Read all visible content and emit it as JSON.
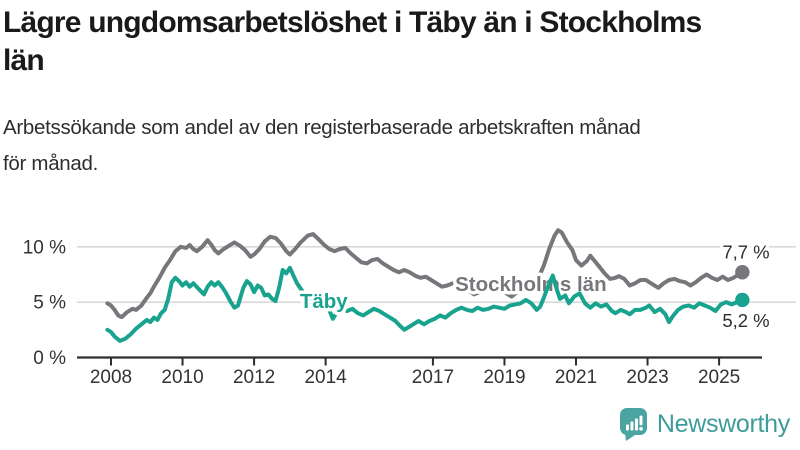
{
  "chart_data": {
    "type": "line",
    "title": "Lägre ungdomsarbetslöshet i Täby än i Stockholms län",
    "title_lines": [
      "Lägre ungdomsarbetslöshet i Täby än i Stockholms",
      "län"
    ],
    "subtitle": "Arbetssökande som andel av den registerbaserade arbetskraften månad för månad.",
    "subtitle_lines": [
      "Arbetssökande som andel av den registerbaserade arbetskraften månad",
      "för månad."
    ],
    "unit": "%",
    "grid": "horizontal",
    "legend_position": "inline-labels",
    "xlim": [
      2007.9,
      2025.65
    ],
    "ylim": [
      0,
      12
    ],
    "yticks": [
      {
        "value": 0,
        "label": "0 %"
      },
      {
        "value": 5,
        "label": "5 %"
      },
      {
        "value": 10,
        "label": "10 %"
      }
    ],
    "xticks": [
      {
        "value": 2008,
        "label": "2008"
      },
      {
        "value": 2010,
        "label": "2010"
      },
      {
        "value": 2012,
        "label": "2012"
      },
      {
        "value": 2014,
        "label": "2014"
      },
      {
        "value": 2017,
        "label": "2017"
      },
      {
        "value": 2019,
        "label": "2019"
      },
      {
        "value": 2021,
        "label": "2021"
      },
      {
        "value": 2023,
        "label": "2023"
      },
      {
        "value": 2025,
        "label": "2025"
      }
    ],
    "colors": {
      "taby": "#18A38E",
      "stockholms_lan": "#77777B",
      "grid": "#D9D9D9",
      "axis": "#2E2E2E",
      "text": "#333333"
    },
    "series": [
      {
        "name": "Stockholms län",
        "color": "#77777B",
        "end_label": "7,7 %",
        "end_value": 7.7,
        "label_at": [
          2017.62,
          6.0
        ],
        "points": [
          [
            2007.9,
            4.9
          ],
          [
            2008.0,
            4.7
          ],
          [
            2008.1,
            4.3
          ],
          [
            2008.2,
            3.8
          ],
          [
            2008.3,
            3.65
          ],
          [
            2008.45,
            4.1
          ],
          [
            2008.6,
            4.4
          ],
          [
            2008.7,
            4.3
          ],
          [
            2008.85,
            4.7
          ],
          [
            2009.0,
            5.4
          ],
          [
            2009.1,
            5.8
          ],
          [
            2009.2,
            6.4
          ],
          [
            2009.35,
            7.2
          ],
          [
            2009.5,
            8.1
          ],
          [
            2009.65,
            8.8
          ],
          [
            2009.8,
            9.6
          ],
          [
            2009.95,
            10.0
          ],
          [
            2010.1,
            9.9
          ],
          [
            2010.2,
            10.15
          ],
          [
            2010.3,
            9.8
          ],
          [
            2010.4,
            9.6
          ],
          [
            2010.55,
            10.0
          ],
          [
            2010.7,
            10.6
          ],
          [
            2010.8,
            10.2
          ],
          [
            2010.9,
            9.7
          ],
          [
            2011.0,
            9.4
          ],
          [
            2011.15,
            9.8
          ],
          [
            2011.3,
            10.1
          ],
          [
            2011.45,
            10.4
          ],
          [
            2011.6,
            10.1
          ],
          [
            2011.75,
            9.7
          ],
          [
            2011.9,
            9.1
          ],
          [
            2012.0,
            9.3
          ],
          [
            2012.15,
            9.8
          ],
          [
            2012.3,
            10.5
          ],
          [
            2012.45,
            10.9
          ],
          [
            2012.6,
            10.8
          ],
          [
            2012.75,
            10.3
          ],
          [
            2012.9,
            9.6
          ],
          [
            2013.0,
            9.3
          ],
          [
            2013.15,
            9.8
          ],
          [
            2013.3,
            10.4
          ],
          [
            2013.5,
            11.0
          ],
          [
            2013.65,
            11.15
          ],
          [
            2013.8,
            10.7
          ],
          [
            2013.95,
            10.2
          ],
          [
            2014.1,
            9.8
          ],
          [
            2014.25,
            9.6
          ],
          [
            2014.4,
            9.8
          ],
          [
            2014.55,
            9.9
          ],
          [
            2014.7,
            9.4
          ],
          [
            2014.85,
            9.0
          ],
          [
            2015.0,
            8.6
          ],
          [
            2015.15,
            8.5
          ],
          [
            2015.3,
            8.8
          ],
          [
            2015.45,
            8.9
          ],
          [
            2015.6,
            8.5
          ],
          [
            2015.75,
            8.2
          ],
          [
            2015.9,
            7.9
          ],
          [
            2016.05,
            7.7
          ],
          [
            2016.2,
            7.9
          ],
          [
            2016.35,
            7.7
          ],
          [
            2016.5,
            7.4
          ],
          [
            2016.65,
            7.2
          ],
          [
            2016.8,
            7.3
          ],
          [
            2016.95,
            7.0
          ],
          [
            2017.1,
            6.7
          ],
          [
            2017.25,
            6.4
          ],
          [
            2017.4,
            6.5
          ],
          [
            2017.55,
            6.7
          ],
          [
            2017.7,
            6.6
          ],
          [
            2017.85,
            6.3
          ],
          [
            2018.0,
            6.0
          ],
          [
            2018.15,
            5.7
          ],
          [
            2018.3,
            5.9
          ],
          [
            2018.45,
            6.2
          ],
          [
            2018.6,
            6.4
          ],
          [
            2018.75,
            6.5
          ],
          [
            2018.9,
            6.2
          ],
          [
            2019.05,
            5.8
          ],
          [
            2019.2,
            5.5
          ],
          [
            2019.35,
            5.9
          ],
          [
            2019.5,
            6.3
          ],
          [
            2019.65,
            6.6
          ],
          [
            2019.8,
            6.8
          ],
          [
            2019.95,
            7.2
          ],
          [
            2020.1,
            8.3
          ],
          [
            2020.25,
            9.8
          ],
          [
            2020.4,
            11.0
          ],
          [
            2020.5,
            11.5
          ],
          [
            2020.6,
            11.3
          ],
          [
            2020.75,
            10.4
          ],
          [
            2020.9,
            9.7
          ],
          [
            2021.0,
            8.8
          ],
          [
            2021.15,
            8.3
          ],
          [
            2021.3,
            8.7
          ],
          [
            2021.4,
            9.2
          ],
          [
            2021.5,
            8.8
          ],
          [
            2021.65,
            8.2
          ],
          [
            2021.8,
            7.6
          ],
          [
            2021.95,
            7.1
          ],
          [
            2022.1,
            7.2
          ],
          [
            2022.2,
            7.35
          ],
          [
            2022.35,
            7.1
          ],
          [
            2022.5,
            6.5
          ],
          [
            2022.65,
            6.7
          ],
          [
            2022.8,
            7.0
          ],
          [
            2022.95,
            7.0
          ],
          [
            2023.1,
            6.7
          ],
          [
            2023.3,
            6.3
          ],
          [
            2023.45,
            6.7
          ],
          [
            2023.6,
            7.0
          ],
          [
            2023.75,
            7.1
          ],
          [
            2023.9,
            6.9
          ],
          [
            2024.05,
            6.8
          ],
          [
            2024.2,
            6.5
          ],
          [
            2024.35,
            6.8
          ],
          [
            2024.5,
            7.2
          ],
          [
            2024.65,
            7.5
          ],
          [
            2024.8,
            7.2
          ],
          [
            2024.95,
            7.0
          ],
          [
            2025.1,
            7.3
          ],
          [
            2025.25,
            7.0
          ],
          [
            2025.4,
            7.2
          ],
          [
            2025.55,
            7.5
          ],
          [
            2025.65,
            7.7
          ]
        ]
      },
      {
        "name": "Täby",
        "color": "#18A38E",
        "end_label": "5,2 %",
        "end_value": 5.2,
        "label_at": [
          2013.28,
          4.45
        ],
        "points": [
          [
            2007.9,
            2.5
          ],
          [
            2008.0,
            2.3
          ],
          [
            2008.1,
            1.9
          ],
          [
            2008.25,
            1.5
          ],
          [
            2008.4,
            1.7
          ],
          [
            2008.55,
            2.1
          ],
          [
            2008.7,
            2.6
          ],
          [
            2008.85,
            3.0
          ],
          [
            2009.0,
            3.4
          ],
          [
            2009.1,
            3.2
          ],
          [
            2009.2,
            3.6
          ],
          [
            2009.3,
            3.4
          ],
          [
            2009.4,
            4.0
          ],
          [
            2009.5,
            4.3
          ],
          [
            2009.6,
            5.3
          ],
          [
            2009.7,
            6.8
          ],
          [
            2009.8,
            7.2
          ],
          [
            2009.9,
            6.9
          ],
          [
            2010.0,
            6.5
          ],
          [
            2010.1,
            6.8
          ],
          [
            2010.2,
            6.4
          ],
          [
            2010.3,
            6.7
          ],
          [
            2010.45,
            6.2
          ],
          [
            2010.6,
            5.7
          ],
          [
            2010.7,
            6.4
          ],
          [
            2010.8,
            6.8
          ],
          [
            2010.9,
            6.5
          ],
          [
            2011.0,
            6.8
          ],
          [
            2011.1,
            6.4
          ],
          [
            2011.2,
            5.9
          ],
          [
            2011.35,
            5.0
          ],
          [
            2011.45,
            4.5
          ],
          [
            2011.55,
            4.7
          ],
          [
            2011.7,
            6.3
          ],
          [
            2011.8,
            6.9
          ],
          [
            2011.9,
            6.6
          ],
          [
            2012.0,
            5.9
          ],
          [
            2012.1,
            6.5
          ],
          [
            2012.2,
            6.3
          ],
          [
            2012.3,
            5.6
          ],
          [
            2012.4,
            5.7
          ],
          [
            2012.5,
            5.3
          ],
          [
            2012.6,
            5.1
          ],
          [
            2012.7,
            6.3
          ],
          [
            2012.8,
            7.9
          ],
          [
            2012.9,
            7.6
          ],
          [
            2013.0,
            8.1
          ],
          [
            2013.1,
            7.4
          ],
          [
            2013.2,
            6.7
          ],
          [
            2013.35,
            6.0
          ],
          [
            2013.5,
            5.4
          ],
          [
            2013.65,
            5.1
          ],
          [
            2013.8,
            5.0
          ],
          [
            2013.95,
            4.8
          ],
          [
            2014.1,
            4.3
          ],
          [
            2014.2,
            3.5
          ],
          [
            2014.3,
            4.0
          ],
          [
            2014.45,
            4.4
          ],
          [
            2014.6,
            4.2
          ],
          [
            2014.75,
            4.4
          ],
          [
            2014.9,
            4.0
          ],
          [
            2015.05,
            3.8
          ],
          [
            2015.2,
            4.1
          ],
          [
            2015.35,
            4.4
          ],
          [
            2015.5,
            4.2
          ],
          [
            2015.65,
            3.9
          ],
          [
            2015.8,
            3.6
          ],
          [
            2015.95,
            3.3
          ],
          [
            2016.1,
            2.8
          ],
          [
            2016.2,
            2.5
          ],
          [
            2016.35,
            2.8
          ],
          [
            2016.5,
            3.1
          ],
          [
            2016.6,
            3.3
          ],
          [
            2016.75,
            3.0
          ],
          [
            2016.9,
            3.3
          ],
          [
            2017.05,
            3.5
          ],
          [
            2017.2,
            3.8
          ],
          [
            2017.35,
            3.6
          ],
          [
            2017.5,
            4.0
          ],
          [
            2017.65,
            4.3
          ],
          [
            2017.8,
            4.5
          ],
          [
            2017.95,
            4.3
          ],
          [
            2018.1,
            4.2
          ],
          [
            2018.25,
            4.5
          ],
          [
            2018.4,
            4.3
          ],
          [
            2018.55,
            4.4
          ],
          [
            2018.7,
            4.6
          ],
          [
            2018.85,
            4.5
          ],
          [
            2019.0,
            4.4
          ],
          [
            2019.15,
            4.7
          ],
          [
            2019.3,
            4.8
          ],
          [
            2019.45,
            4.9
          ],
          [
            2019.6,
            5.2
          ],
          [
            2019.75,
            4.9
          ],
          [
            2019.9,
            4.3
          ],
          [
            2020.0,
            4.6
          ],
          [
            2020.1,
            5.4
          ],
          [
            2020.25,
            6.7
          ],
          [
            2020.35,
            7.4
          ],
          [
            2020.45,
            6.3
          ],
          [
            2020.55,
            5.3
          ],
          [
            2020.7,
            5.6
          ],
          [
            2020.8,
            4.9
          ],
          [
            2020.95,
            5.5
          ],
          [
            2021.1,
            5.8
          ],
          [
            2021.25,
            4.9
          ],
          [
            2021.4,
            4.5
          ],
          [
            2021.55,
            4.9
          ],
          [
            2021.7,
            4.6
          ],
          [
            2021.85,
            4.8
          ],
          [
            2022.0,
            4.2
          ],
          [
            2022.1,
            4.0
          ],
          [
            2022.25,
            4.3
          ],
          [
            2022.4,
            4.1
          ],
          [
            2022.5,
            3.9
          ],
          [
            2022.65,
            4.3
          ],
          [
            2022.8,
            4.3
          ],
          [
            2022.95,
            4.5
          ],
          [
            2023.05,
            4.7
          ],
          [
            2023.2,
            4.1
          ],
          [
            2023.35,
            4.4
          ],
          [
            2023.5,
            3.9
          ],
          [
            2023.6,
            3.2
          ],
          [
            2023.7,
            3.7
          ],
          [
            2023.85,
            4.3
          ],
          [
            2024.0,
            4.6
          ],
          [
            2024.15,
            4.7
          ],
          [
            2024.3,
            4.5
          ],
          [
            2024.45,
            4.9
          ],
          [
            2024.6,
            4.7
          ],
          [
            2024.75,
            4.5
          ],
          [
            2024.9,
            4.2
          ],
          [
            2025.05,
            4.8
          ],
          [
            2025.2,
            5.0
          ],
          [
            2025.35,
            4.8
          ],
          [
            2025.5,
            5.0
          ],
          [
            2025.65,
            5.2
          ]
        ]
      }
    ]
  },
  "footer": {
    "brand": "Newsworthy",
    "brand_color": "#3E9D9A",
    "icon": "newsworthy-bar-chart-speech-bubble-icon"
  }
}
